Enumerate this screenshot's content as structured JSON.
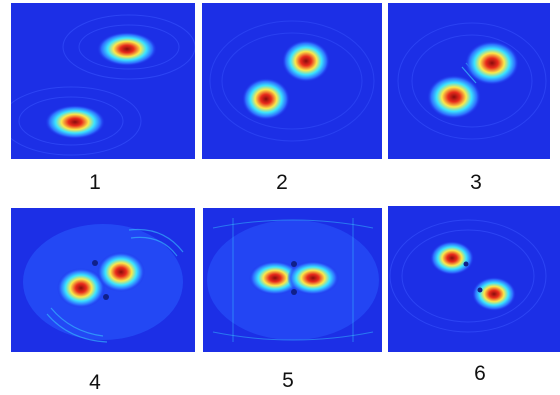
{
  "panels": [
    {
      "label": "1"
    },
    {
      "label": "2"
    },
    {
      "label": "3"
    },
    {
      "label": "4"
    },
    {
      "label": "5"
    },
    {
      "label": "6"
    }
  ],
  "colors": {
    "background_field": "#1c2fe6",
    "low": "#2b6bff",
    "mid": "#20d8ff",
    "high": "#f7f34a",
    "peak": "#e8241d",
    "core": "#9a0f0f"
  }
}
